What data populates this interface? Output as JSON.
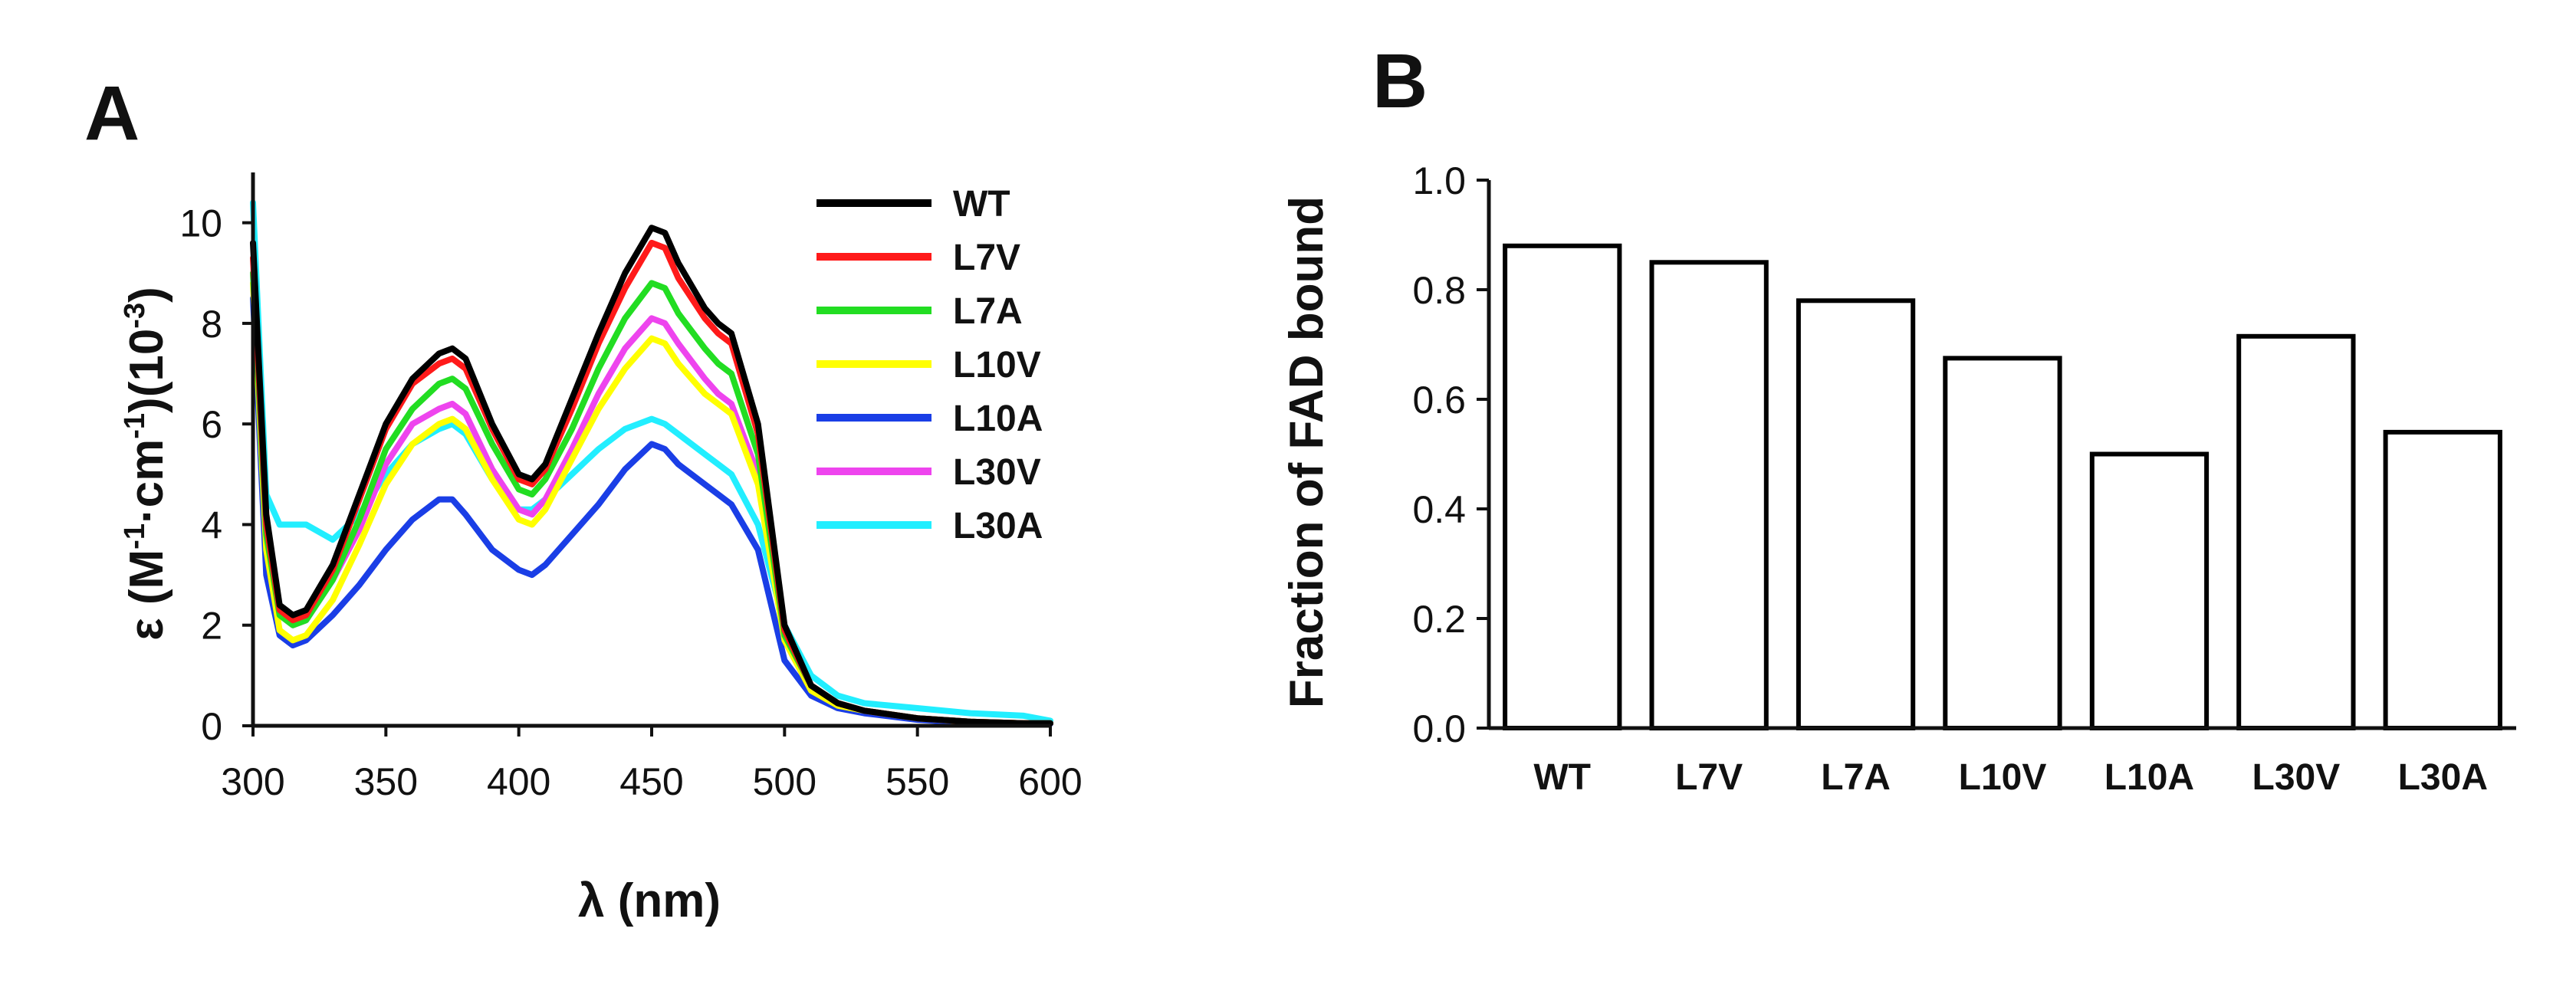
{
  "panels": {
    "a_label": "A",
    "b_label": "B"
  },
  "chart_data": [
    {
      "type": "line",
      "panel": "A",
      "title": "",
      "xlabel": "λ (nm)",
      "ylabel": "ε (M-1·cm-1)(10-3)",
      "ylabel_parts": {
        "eps": "ε (M",
        "sup1": "-1",
        "mid": "·cm",
        "sup2": "-1",
        "close": ")(10",
        "sup3": "-3",
        "end": ")"
      },
      "xlim": [
        300,
        600
      ],
      "ylim": [
        0,
        11
      ],
      "xticks": [
        300,
        350,
        400,
        450,
        500,
        550,
        600
      ],
      "yticks": [
        0,
        2,
        4,
        6,
        8,
        10
      ],
      "grid": false,
      "legend_position": "top-right",
      "x": [
        300,
        305,
        310,
        315,
        320,
        330,
        340,
        350,
        360,
        370,
        375,
        380,
        390,
        400,
        405,
        410,
        420,
        430,
        440,
        450,
        455,
        460,
        470,
        475,
        480,
        490,
        500,
        510,
        520,
        530,
        550,
        570,
        590,
        600
      ],
      "series": [
        {
          "name": "WT",
          "color": "#000000",
          "values": [
            9.6,
            4.2,
            2.4,
            2.2,
            2.3,
            3.2,
            4.6,
            6.0,
            6.9,
            7.4,
            7.5,
            7.3,
            6.0,
            5.0,
            4.9,
            5.2,
            6.5,
            7.8,
            9.0,
            9.9,
            9.8,
            9.2,
            8.3,
            8.0,
            7.8,
            6.0,
            2.0,
            0.8,
            0.45,
            0.3,
            0.15,
            0.08,
            0.05,
            0.05
          ]
        },
        {
          "name": "L7V",
          "color": "#ff1a1a",
          "values": [
            9.3,
            4.0,
            2.3,
            2.1,
            2.2,
            3.1,
            4.5,
            5.9,
            6.8,
            7.2,
            7.3,
            7.1,
            5.9,
            4.9,
            4.8,
            5.1,
            6.3,
            7.6,
            8.7,
            9.6,
            9.5,
            8.9,
            8.1,
            7.8,
            7.6,
            5.8,
            1.9,
            0.8,
            0.45,
            0.3,
            0.15,
            0.08,
            0.05,
            0.05
          ]
        },
        {
          "name": "L7A",
          "color": "#22dd22",
          "values": [
            9.0,
            3.8,
            2.2,
            2.0,
            2.1,
            2.9,
            4.1,
            5.5,
            6.3,
            6.8,
            6.9,
            6.7,
            5.6,
            4.7,
            4.6,
            4.9,
            5.9,
            7.1,
            8.1,
            8.8,
            8.7,
            8.2,
            7.5,
            7.2,
            7.0,
            5.4,
            1.8,
            0.8,
            0.45,
            0.3,
            0.15,
            0.08,
            0.05,
            0.05
          ]
        },
        {
          "name": "L10V",
          "color": "#ffff00",
          "values": [
            8.8,
            3.5,
            1.9,
            1.7,
            1.8,
            2.5,
            3.6,
            4.8,
            5.6,
            6.0,
            6.1,
            5.9,
            4.9,
            4.1,
            4.0,
            4.3,
            5.3,
            6.3,
            7.1,
            7.7,
            7.6,
            7.2,
            6.6,
            6.4,
            6.2,
            4.8,
            1.7,
            0.7,
            0.4,
            0.3,
            0.15,
            0.08,
            0.05,
            0.05
          ]
        },
        {
          "name": "L10A",
          "color": "#1a3ee6",
          "values": [
            8.5,
            3.0,
            1.8,
            1.6,
            1.7,
            2.2,
            2.8,
            3.5,
            4.1,
            4.5,
            4.5,
            4.2,
            3.5,
            3.1,
            3.0,
            3.2,
            3.8,
            4.4,
            5.1,
            5.6,
            5.5,
            5.2,
            4.8,
            4.6,
            4.4,
            3.5,
            1.3,
            0.6,
            0.35,
            0.25,
            0.12,
            0.06,
            0.04,
            0.04
          ]
        },
        {
          "name": "L30V",
          "color": "#ee44ee",
          "values": [
            9.0,
            3.8,
            2.2,
            2.0,
            2.1,
            2.9,
            3.9,
            5.2,
            6.0,
            6.3,
            6.4,
            6.2,
            5.1,
            4.3,
            4.2,
            4.5,
            5.5,
            6.6,
            7.5,
            8.1,
            8.0,
            7.6,
            6.9,
            6.6,
            6.4,
            5.0,
            1.7,
            0.7,
            0.4,
            0.3,
            0.15,
            0.08,
            0.05,
            0.05
          ]
        },
        {
          "name": "L30A",
          "color": "#22eeff",
          "values": [
            10.4,
            4.6,
            4.0,
            4.0,
            4.0,
            3.7,
            4.2,
            5.0,
            5.6,
            5.9,
            6.0,
            5.8,
            4.9,
            4.3,
            4.3,
            4.5,
            5.0,
            5.5,
            5.9,
            6.1,
            6.0,
            5.8,
            5.4,
            5.2,
            5.0,
            4.0,
            2.0,
            1.0,
            0.6,
            0.45,
            0.35,
            0.25,
            0.2,
            0.1
          ]
        }
      ]
    },
    {
      "type": "bar",
      "panel": "B",
      "title": "",
      "xlabel": "",
      "ylabel": "Fraction of FAD bound",
      "categories": [
        "WT",
        "L7V",
        "L7A",
        "L10V",
        "L10A",
        "L30V",
        "L30A"
      ],
      "values": [
        0.88,
        0.85,
        0.78,
        0.675,
        0.5,
        0.715,
        0.54
      ],
      "ylim": [
        0,
        1.0
      ],
      "yticks": [
        "0.0",
        "0.2",
        "0.4",
        "0.6",
        "0.8",
        "1.0"
      ],
      "grid": false,
      "bar_fill": "#ffffff",
      "bar_edge": "#000000"
    }
  ]
}
